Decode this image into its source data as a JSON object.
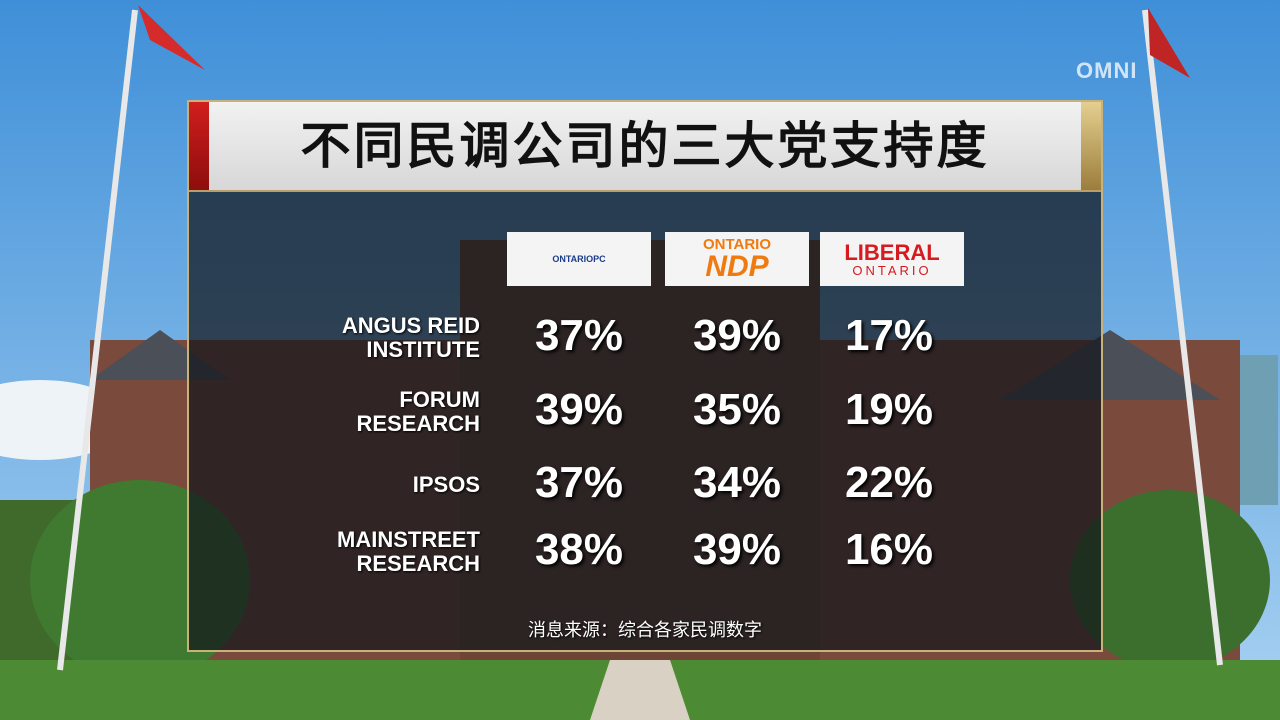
{
  "watermark": "OMNI",
  "title": "不同民调公司的三大党支持度",
  "table": {
    "columns": [
      [
        "ONTARIOPC"
      ],
      [
        "ONTARIO",
        "NDP"
      ],
      [
        "LIBERAL",
        "ONTARIO"
      ]
    ],
    "rows": [
      {
        "name": [
          "ANGUS REID",
          "INSTITUTE"
        ],
        "values": [
          "37%",
          "39%",
          "17%"
        ]
      },
      {
        "name": [
          "FORUM",
          "RESEARCH"
        ],
        "values": [
          "39%",
          "35%",
          "19%"
        ]
      },
      {
        "name": [
          "IPSOS"
        ],
        "values": [
          "37%",
          "34%",
          "22%"
        ]
      },
      {
        "name": [
          "MAINSTREET",
          "RESEARCH"
        ],
        "values": [
          "38%",
          "39%",
          "16%"
        ]
      }
    ]
  },
  "source": "消息来源：综合各家民调数字"
}
